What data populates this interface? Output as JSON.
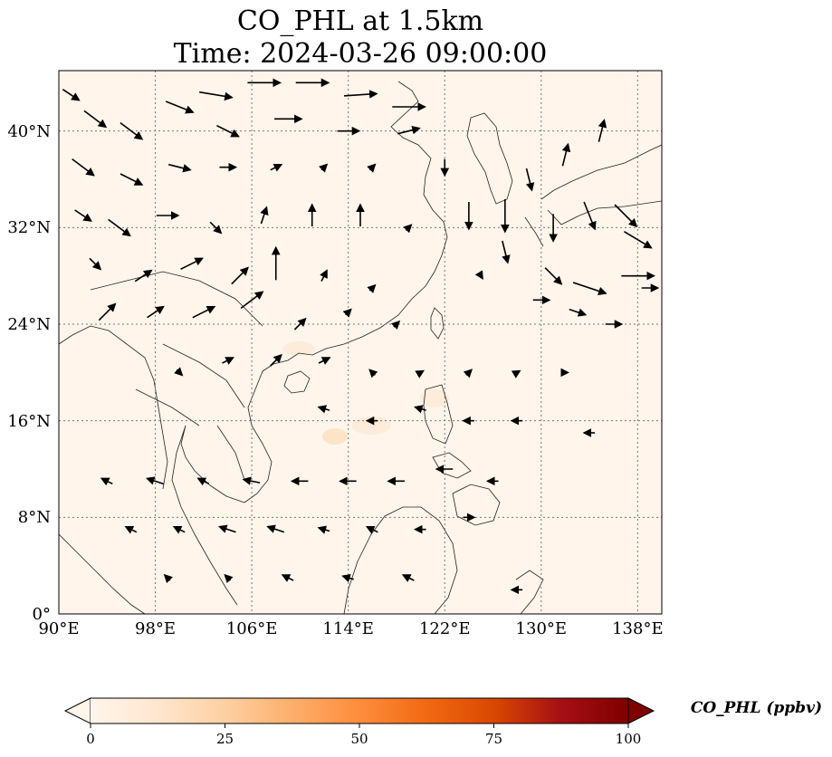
{
  "figure": {
    "title_line1": "CO_PHL at 1.5km",
    "title_line2": "Time: 2024-03-26 09:00:00"
  },
  "map": {
    "extent": {
      "lon_min": 90,
      "lon_max": 140,
      "lat_min": 0,
      "lat_max": 45
    },
    "gridlines": {
      "lons": [
        90,
        98,
        106,
        114,
        122,
        130,
        138
      ],
      "lats": [
        0,
        8,
        16,
        24,
        32,
        40
      ],
      "style": "dotted",
      "color": "#777777"
    },
    "lon_tick_labels": [
      "90°E",
      "98°E",
      "106°E",
      "114°E",
      "122°E",
      "130°E",
      "138°E"
    ],
    "lat_tick_labels": [
      "0°",
      "8°N",
      "16°N",
      "24°N",
      "32°N",
      "40°N"
    ],
    "background_color": "#fff5eb",
    "wind_vectors": [
      {
        "lon": 91,
        "lat": 43,
        "u": 1.5,
        "v": -1
      },
      {
        "lon": 93,
        "lat": 41,
        "u": 2,
        "v": -1.5
      },
      {
        "lon": 96,
        "lat": 40,
        "u": 2,
        "v": -1.5
      },
      {
        "lon": 100,
        "lat": 42,
        "u": 2.5,
        "v": -1
      },
      {
        "lon": 103,
        "lat": 43,
        "u": 3,
        "v": -0.5
      },
      {
        "lon": 107,
        "lat": 44,
        "u": 3,
        "v": 0
      },
      {
        "lon": 111,
        "lat": 44,
        "u": 3,
        "v": 0
      },
      {
        "lon": 115,
        "lat": 43,
        "u": 3,
        "v": 0.2
      },
      {
        "lon": 119,
        "lat": 42,
        "u": 3,
        "v": 0
      },
      {
        "lon": 104,
        "lat": 40,
        "u": 2,
        "v": -1
      },
      {
        "lon": 109,
        "lat": 41,
        "u": 2.5,
        "v": 0
      },
      {
        "lon": 114,
        "lat": 40,
        "u": 2,
        "v": 0
      },
      {
        "lon": 119,
        "lat": 40,
        "u": 2,
        "v": 0.5
      },
      {
        "lon": 92,
        "lat": 37,
        "u": 2,
        "v": -1.5
      },
      {
        "lon": 96,
        "lat": 36,
        "u": 2,
        "v": -1
      },
      {
        "lon": 100,
        "lat": 37,
        "u": 2,
        "v": -0.5
      },
      {
        "lon": 104,
        "lat": 37,
        "u": 1.5,
        "v": 0
      },
      {
        "lon": 108,
        "lat": 37,
        "u": 1,
        "v": 0.5
      },
      {
        "lon": 112,
        "lat": 37,
        "u": 0.5,
        "v": 0.5
      },
      {
        "lon": 116,
        "lat": 37,
        "u": 0.5,
        "v": 0.5
      },
      {
        "lon": 92,
        "lat": 33,
        "u": 1.5,
        "v": -1
      },
      {
        "lon": 95,
        "lat": 32,
        "u": 2,
        "v": -1.5
      },
      {
        "lon": 99,
        "lat": 33,
        "u": 2,
        "v": 0
      },
      {
        "lon": 103,
        "lat": 32,
        "u": 1,
        "v": -1
      },
      {
        "lon": 107,
        "lat": 33,
        "u": 0.5,
        "v": 1.5
      },
      {
        "lon": 111,
        "lat": 33,
        "u": 0,
        "v": 2
      },
      {
        "lon": 115,
        "lat": 33,
        "u": 0,
        "v": 2
      },
      {
        "lon": 119,
        "lat": 32,
        "u": 0.5,
        "v": 0.5
      },
      {
        "lon": 93,
        "lat": 29,
        "u": 1,
        "v": -1
      },
      {
        "lon": 97,
        "lat": 28,
        "u": 1.5,
        "v": 1
      },
      {
        "lon": 101,
        "lat": 29,
        "u": 2,
        "v": 1
      },
      {
        "lon": 105,
        "lat": 28,
        "u": 1.5,
        "v": 1.5
      },
      {
        "lon": 108,
        "lat": 29,
        "u": 0,
        "v": 3
      },
      {
        "lon": 112,
        "lat": 28,
        "u": 0.5,
        "v": 1
      },
      {
        "lon": 116,
        "lat": 27,
        "u": 0.5,
        "v": 0.5
      },
      {
        "lon": 94,
        "lat": 25,
        "u": 1.5,
        "v": 1.5
      },
      {
        "lon": 98,
        "lat": 25,
        "u": 1.5,
        "v": 1
      },
      {
        "lon": 102,
        "lat": 25,
        "u": 2,
        "v": 1
      },
      {
        "lon": 106,
        "lat": 26,
        "u": 2,
        "v": 1.5
      },
      {
        "lon": 110,
        "lat": 24,
        "u": 1,
        "v": 1
      },
      {
        "lon": 114,
        "lat": 25,
        "u": 0.5,
        "v": 0.5
      },
      {
        "lon": 118,
        "lat": 24,
        "u": 0.5,
        "v": 0.5
      },
      {
        "lon": 122,
        "lat": 37,
        "u": 0,
        "v": -1.5
      },
      {
        "lon": 124,
        "lat": 33,
        "u": 0,
        "v": -2.5
      },
      {
        "lon": 127,
        "lat": 33,
        "u": 0,
        "v": -3
      },
      {
        "lon": 129,
        "lat": 36,
        "u": 0.5,
        "v": -2
      },
      {
        "lon": 131,
        "lat": 32,
        "u": 0,
        "v": -2.5
      },
      {
        "lon": 134,
        "lat": 33,
        "u": 1,
        "v": -2.5
      },
      {
        "lon": 137,
        "lat": 33,
        "u": 2,
        "v": -2
      },
      {
        "lon": 132,
        "lat": 38,
        "u": 0.5,
        "v": 2
      },
      {
        "lon": 135,
        "lat": 40,
        "u": 0.5,
        "v": 2
      },
      {
        "lon": 127,
        "lat": 30,
        "u": 0.5,
        "v": -2
      },
      {
        "lon": 131,
        "lat": 28,
        "u": 1.5,
        "v": -1.5
      },
      {
        "lon": 134,
        "lat": 27,
        "u": 3,
        "v": -1
      },
      {
        "lon": 138,
        "lat": 28,
        "u": 3,
        "v": 0
      },
      {
        "lon": 138,
        "lat": 31,
        "u": 2.5,
        "v": -1.5
      },
      {
        "lon": 130,
        "lat": 26,
        "u": 1.5,
        "v": 0
      },
      {
        "lon": 133,
        "lat": 25,
        "u": 1.5,
        "v": -0.5
      },
      {
        "lon": 136,
        "lat": 24,
        "u": 1.5,
        "v": 0
      },
      {
        "lon": 139,
        "lat": 27,
        "u": 1.5,
        "v": 0
      },
      {
        "lon": 125,
        "lat": 28,
        "u": 0.3,
        "v": -0.5
      },
      {
        "lon": 100,
        "lat": 20,
        "u": 0.5,
        "v": -0.5
      },
      {
        "lon": 104,
        "lat": 21,
        "u": 1,
        "v": 0.5
      },
      {
        "lon": 108,
        "lat": 21,
        "u": 1,
        "v": 1
      },
      {
        "lon": 112,
        "lat": 21,
        "u": 1,
        "v": 0.5
      },
      {
        "lon": 116,
        "lat": 20,
        "u": -0.5,
        "v": 0.5
      },
      {
        "lon": 120,
        "lat": 20,
        "u": 0.5,
        "v": 0.3
      },
      {
        "lon": 124,
        "lat": 20,
        "u": 0.5,
        "v": 0.5
      },
      {
        "lon": 128,
        "lat": 20,
        "u": 0.5,
        "v": 0.3
      },
      {
        "lon": 132,
        "lat": 20,
        "u": 0.5,
        "v": 0
      },
      {
        "lon": 112,
        "lat": 17,
        "u": -1,
        "v": 0.3
      },
      {
        "lon": 116,
        "lat": 16,
        "u": -1,
        "v": 0
      },
      {
        "lon": 120,
        "lat": 17,
        "u": -1,
        "v": 0.3
      },
      {
        "lon": 124,
        "lat": 16,
        "u": -1,
        "v": 0
      },
      {
        "lon": 128,
        "lat": 16,
        "u": -1,
        "v": 0
      },
      {
        "lon": 134,
        "lat": 15,
        "u": -1,
        "v": 0
      },
      {
        "lon": 94,
        "lat": 11,
        "u": -1,
        "v": 0.5
      },
      {
        "lon": 98,
        "lat": 11,
        "u": -1.5,
        "v": 0.5
      },
      {
        "lon": 102,
        "lat": 11,
        "u": -1,
        "v": 0.5
      },
      {
        "lon": 106,
        "lat": 11,
        "u": -1.5,
        "v": 0.3
      },
      {
        "lon": 110,
        "lat": 11,
        "u": -1.5,
        "v": 0
      },
      {
        "lon": 114,
        "lat": 11,
        "u": -1.5,
        "v": 0
      },
      {
        "lon": 118,
        "lat": 11,
        "u": -1.5,
        "v": 0
      },
      {
        "lon": 122,
        "lat": 12,
        "u": -1.5,
        "v": 0
      },
      {
        "lon": 126,
        "lat": 11,
        "u": -1,
        "v": 0
      },
      {
        "lon": 96,
        "lat": 7,
        "u": -1,
        "v": 0.5
      },
      {
        "lon": 100,
        "lat": 7,
        "u": -1,
        "v": 0.5
      },
      {
        "lon": 104,
        "lat": 7,
        "u": -1.5,
        "v": 0.5
      },
      {
        "lon": 108,
        "lat": 7,
        "u": -1.5,
        "v": 0.5
      },
      {
        "lon": 112,
        "lat": 7,
        "u": -1,
        "v": 0.3
      },
      {
        "lon": 116,
        "lat": 7,
        "u": -1,
        "v": 0.5
      },
      {
        "lon": 120,
        "lat": 7,
        "u": -1,
        "v": 0
      },
      {
        "lon": 124,
        "lat": 8,
        "u": 1,
        "v": 0
      },
      {
        "lon": 99,
        "lat": 3,
        "u": -0.5,
        "v": 0.5
      },
      {
        "lon": 104,
        "lat": 3,
        "u": -0.5,
        "v": 0.5
      },
      {
        "lon": 109,
        "lat": 3,
        "u": -1,
        "v": 0.5
      },
      {
        "lon": 114,
        "lat": 3,
        "u": -1,
        "v": 0.3
      },
      {
        "lon": 119,
        "lat": 3,
        "u": -1,
        "v": 0.5
      },
      {
        "lon": 128,
        "lat": 2,
        "u": -1,
        "v": 0
      }
    ]
  },
  "colorbar": {
    "label": "CO_PHL (ppbv)",
    "ticks": [
      "0",
      "25",
      "50",
      "75",
      "100"
    ],
    "colors": [
      "#fff5eb",
      "#fee6ce",
      "#fdd0a2",
      "#fdae6b",
      "#fd8d3c",
      "#f16913",
      "#d94801",
      "#a50f15",
      "#7f0000"
    ],
    "extend": "both"
  }
}
